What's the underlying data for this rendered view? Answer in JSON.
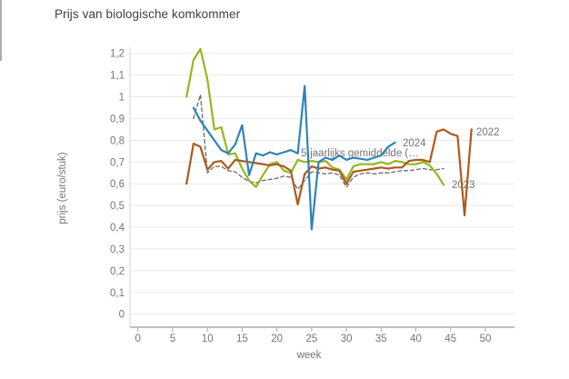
{
  "page": {
    "title": "Prijs van biologische komkommer"
  },
  "chart_data": {
    "type": "line",
    "title": "Prijs van biologische komkommer",
    "xlabel": "week",
    "ylabel": "prijs (euro/stuk)",
    "xlim": [
      0,
      54
    ],
    "ylim": [
      0,
      1.25
    ],
    "grid": "horizontal",
    "legend_position": "inline-labels-at-line-ends",
    "decimal_separator": ",",
    "xticks": [
      {
        "value": 0,
        "label": "0"
      },
      {
        "value": 5,
        "label": "5"
      },
      {
        "value": 10,
        "label": "10"
      },
      {
        "value": 15,
        "label": "15"
      },
      {
        "value": 20,
        "label": "20"
      },
      {
        "value": 25,
        "label": "25"
      },
      {
        "value": 30,
        "label": "30"
      },
      {
        "value": 35,
        "label": "35"
      },
      {
        "value": 40,
        "label": "40"
      },
      {
        "value": 45,
        "label": "45"
      },
      {
        "value": 50,
        "label": "50"
      }
    ],
    "yticks": [
      {
        "value": 0,
        "label": "0"
      },
      {
        "value": 0.1,
        "label": "0,1"
      },
      {
        "value": 0.2,
        "label": "0,2"
      },
      {
        "value": 0.3,
        "label": "0,3"
      },
      {
        "value": 0.4,
        "label": "0,4"
      },
      {
        "value": 0.5,
        "label": "0,5"
      },
      {
        "value": 0.6,
        "label": "0,6"
      },
      {
        "value": 0.7,
        "label": "0,7"
      },
      {
        "value": 0.8,
        "label": "0,8"
      },
      {
        "value": 0.9,
        "label": "0,9"
      },
      {
        "value": 1,
        "label": "1"
      },
      {
        "value": 1.1,
        "label": "1,1"
      },
      {
        "value": 1.2,
        "label": "1,2"
      }
    ],
    "series": [
      {
        "name": "5-jaarlijks gemiddelde (…",
        "color": "#6b6b6b",
        "dash": true,
        "points": [
          [
            8,
            0.9
          ],
          [
            9,
            1.01
          ],
          [
            10,
            0.65
          ],
          [
            11,
            0.68
          ],
          [
            12,
            0.68
          ],
          [
            13,
            0.66
          ],
          [
            14,
            0.655
          ],
          [
            15,
            0.63
          ],
          [
            16,
            0.61
          ],
          [
            17,
            0.605
          ],
          [
            18,
            0.615
          ],
          [
            19,
            0.62
          ],
          [
            20,
            0.625
          ],
          [
            21,
            0.635
          ],
          [
            22,
            0.63
          ],
          [
            23,
            0.575
          ],
          [
            24,
            0.615
          ],
          [
            25,
            0.655
          ],
          [
            26,
            0.65
          ],
          [
            27,
            0.645
          ],
          [
            28,
            0.65
          ],
          [
            29,
            0.64
          ],
          [
            30,
            0.585
          ],
          [
            31,
            0.63
          ],
          [
            32,
            0.645
          ],
          [
            33,
            0.65
          ],
          [
            34,
            0.645
          ],
          [
            35,
            0.65
          ],
          [
            36,
            0.65
          ],
          [
            37,
            0.655
          ],
          [
            38,
            0.66
          ],
          [
            39,
            0.66
          ],
          [
            40,
            0.665
          ],
          [
            41,
            0.67
          ],
          [
            42,
            0.665
          ],
          [
            43,
            0.665
          ],
          [
            44,
            0.67
          ]
        ]
      },
      {
        "name": "2023",
        "color": "#94b71e",
        "dash": false,
        "points": [
          [
            7,
            1.0
          ],
          [
            8,
            1.17
          ],
          [
            9,
            1.22
          ],
          [
            10,
            1.08
          ],
          [
            11,
            0.85
          ],
          [
            12,
            0.86
          ],
          [
            13,
            0.735
          ],
          [
            14,
            0.74
          ],
          [
            15,
            0.67
          ],
          [
            16,
            0.615
          ],
          [
            17,
            0.585
          ],
          [
            18,
            0.64
          ],
          [
            19,
            0.69
          ],
          [
            20,
            0.7
          ],
          [
            21,
            0.66
          ],
          [
            22,
            0.65
          ],
          [
            23,
            0.71
          ],
          [
            24,
            0.7
          ],
          [
            25,
            0.705
          ],
          [
            26,
            0.7
          ],
          [
            27,
            0.705
          ],
          [
            28,
            0.675
          ],
          [
            29,
            0.665
          ],
          [
            30,
            0.62
          ],
          [
            31,
            0.68
          ],
          [
            32,
            0.69
          ],
          [
            33,
            0.69
          ],
          [
            34,
            0.69
          ],
          [
            35,
            0.7
          ],
          [
            36,
            0.69
          ],
          [
            37,
            0.705
          ],
          [
            38,
            0.7
          ],
          [
            39,
            0.69
          ],
          [
            40,
            0.69
          ],
          [
            41,
            0.7
          ],
          [
            42,
            0.685
          ],
          [
            43,
            0.645
          ],
          [
            44,
            0.595
          ]
        ]
      },
      {
        "name": "2022",
        "color": "#ad5a1e",
        "dash": false,
        "points": [
          [
            7,
            0.6
          ],
          [
            8,
            0.785
          ],
          [
            9,
            0.77
          ],
          [
            10,
            0.665
          ],
          [
            11,
            0.7
          ],
          [
            12,
            0.705
          ],
          [
            13,
            0.67
          ],
          [
            14,
            0.71
          ],
          [
            15,
            0.705
          ],
          [
            16,
            0.7
          ],
          [
            17,
            0.695
          ],
          [
            18,
            0.69
          ],
          [
            19,
            0.685
          ],
          [
            20,
            0.69
          ],
          [
            21,
            0.68
          ],
          [
            22,
            0.66
          ],
          [
            23,
            0.505
          ],
          [
            24,
            0.645
          ],
          [
            25,
            0.68
          ],
          [
            26,
            0.67
          ],
          [
            27,
            0.675
          ],
          [
            28,
            0.665
          ],
          [
            29,
            0.66
          ],
          [
            30,
            0.6
          ],
          [
            31,
            0.655
          ],
          [
            32,
            0.66
          ],
          [
            33,
            0.665
          ],
          [
            34,
            0.67
          ],
          [
            35,
            0.675
          ],
          [
            36,
            0.67
          ],
          [
            37,
            0.675
          ],
          [
            38,
            0.675
          ],
          [
            39,
            0.705
          ],
          [
            40,
            0.71
          ],
          [
            41,
            0.71
          ],
          [
            42,
            0.7
          ],
          [
            43,
            0.84
          ],
          [
            44,
            0.85
          ],
          [
            45,
            0.83
          ],
          [
            46,
            0.82
          ],
          [
            47,
            0.455
          ],
          [
            48,
            0.85
          ]
        ]
      },
      {
        "name": "2024",
        "color": "#2e83b6",
        "dash": false,
        "points": [
          [
            8,
            0.95
          ],
          [
            9,
            0.89
          ],
          [
            10,
            0.845
          ],
          [
            11,
            0.8
          ],
          [
            12,
            0.755
          ],
          [
            13,
            0.74
          ],
          [
            14,
            0.78
          ],
          [
            15,
            0.87
          ],
          [
            16,
            0.64
          ],
          [
            17,
            0.74
          ],
          [
            18,
            0.73
          ],
          [
            19,
            0.745
          ],
          [
            20,
            0.735
          ],
          [
            21,
            0.745
          ],
          [
            22,
            0.755
          ],
          [
            23,
            0.74
          ],
          [
            24,
            1.05
          ],
          [
            25,
            0.39
          ],
          [
            26,
            0.7
          ],
          [
            27,
            0.72
          ],
          [
            28,
            0.71
          ],
          [
            29,
            0.73
          ],
          [
            30,
            0.71
          ],
          [
            31,
            0.72
          ],
          [
            32,
            0.715
          ],
          [
            33,
            0.71
          ],
          [
            34,
            0.72
          ],
          [
            35,
            0.73
          ],
          [
            36,
            0.77
          ],
          [
            37,
            0.79
          ]
        ]
      }
    ]
  }
}
